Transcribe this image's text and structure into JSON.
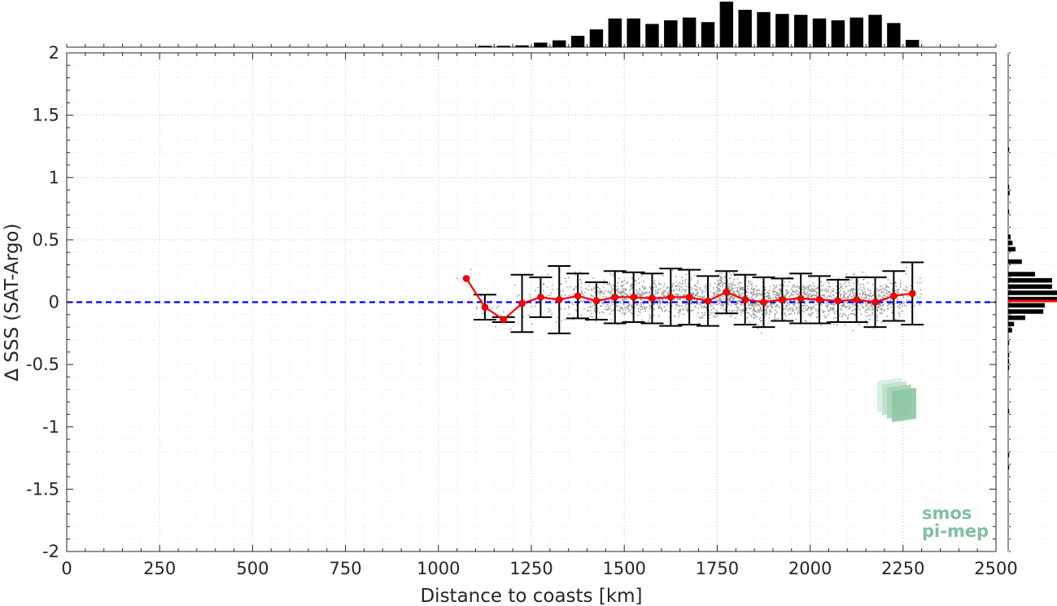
{
  "chart_data": {
    "type": "scatter",
    "xlabel": "Distance to coasts [km]",
    "ylabel": "∆ SSS (SAT-Argo)",
    "xlim": [
      0,
      2500
    ],
    "ylim": [
      -2,
      2
    ],
    "xticks": [
      0,
      250,
      500,
      750,
      1000,
      1250,
      1500,
      1750,
      2000,
      2250,
      2500
    ],
    "yticks": [
      -2,
      -1.5,
      -1,
      -0.5,
      0,
      0.5,
      1,
      1.5,
      2
    ],
    "grid": "on",
    "reference_line": {
      "y": 0,
      "color": "#0000ff",
      "style": "dashed"
    },
    "mean_series": {
      "color": "#ff0000",
      "points": [
        {
          "x": 1075,
          "y": 0.19,
          "err": 0.0
        },
        {
          "x": 1125,
          "y": -0.04,
          "err": 0.1
        },
        {
          "x": 1175,
          "y": -0.14,
          "err": 0.02
        },
        {
          "x": 1225,
          "y": -0.01,
          "err": 0.23
        },
        {
          "x": 1275,
          "y": 0.04,
          "err": 0.16
        },
        {
          "x": 1325,
          "y": 0.02,
          "err": 0.27
        },
        {
          "x": 1375,
          "y": 0.05,
          "err": 0.18
        },
        {
          "x": 1425,
          "y": 0.01,
          "err": 0.15
        },
        {
          "x": 1475,
          "y": 0.04,
          "err": 0.21
        },
        {
          "x": 1525,
          "y": 0.04,
          "err": 0.2
        },
        {
          "x": 1575,
          "y": 0.03,
          "err": 0.2
        },
        {
          "x": 1625,
          "y": 0.04,
          "err": 0.23
        },
        {
          "x": 1675,
          "y": 0.04,
          "err": 0.22
        },
        {
          "x": 1725,
          "y": 0.01,
          "err": 0.2
        },
        {
          "x": 1775,
          "y": 0.08,
          "err": 0.17
        },
        {
          "x": 1825,
          "y": 0.02,
          "err": 0.2
        },
        {
          "x": 1875,
          "y": 0.0,
          "err": 0.2
        },
        {
          "x": 1925,
          "y": 0.02,
          "err": 0.17
        },
        {
          "x": 1975,
          "y": 0.03,
          "err": 0.2
        },
        {
          "x": 2025,
          "y": 0.02,
          "err": 0.19
        },
        {
          "x": 2075,
          "y": 0.01,
          "err": 0.17
        },
        {
          "x": 2125,
          "y": 0.02,
          "err": 0.18
        },
        {
          "x": 2175,
          "y": 0.0,
          "err": 0.2
        },
        {
          "x": 2225,
          "y": 0.05,
          "err": 0.2
        },
        {
          "x": 2275,
          "y": 0.07,
          "err": 0.25
        }
      ]
    },
    "top_histogram": {
      "bin_width": 50,
      "bin_centers": [
        1075,
        1125,
        1175,
        1225,
        1275,
        1325,
        1375,
        1425,
        1475,
        1525,
        1575,
        1625,
        1675,
        1725,
        1775,
        1825,
        1875,
        1925,
        1975,
        2025,
        2075,
        2125,
        2175,
        2225,
        2275
      ],
      "relative_counts": [
        0.01,
        0.03,
        0.03,
        0.04,
        0.1,
        0.15,
        0.25,
        0.39,
        0.63,
        0.63,
        0.51,
        0.59,
        0.65,
        0.55,
        1.0,
        0.82,
        0.77,
        0.73,
        0.71,
        0.63,
        0.59,
        0.65,
        0.71,
        0.53,
        0.16
      ]
    },
    "right_histogram": {
      "bin_width": 0.05,
      "bin_centers": [
        1.225,
        0.925,
        0.875,
        0.725,
        0.525,
        0.475,
        0.425,
        0.325,
        0.225,
        0.175,
        0.125,
        0.075,
        0.025,
        -0.025,
        -0.075,
        -0.125,
        -0.175,
        -0.225,
        -0.325,
        -0.425,
        -0.475,
        -0.525,
        -0.875,
        -1.225,
        -1.325
      ],
      "relative_counts": [
        0.02,
        0.02,
        0.03,
        0.02,
        0.05,
        0.09,
        0.15,
        0.28,
        0.55,
        0.9,
        0.9,
        1.0,
        1.0,
        0.75,
        0.72,
        0.35,
        0.12,
        0.08,
        0.02,
        0.02,
        0.02,
        0.02,
        0.02,
        0.02,
        0.02
      ],
      "mean_color": "#ff0000"
    },
    "logo": {
      "line1": "smos",
      "line2": "pi-mep"
    }
  }
}
